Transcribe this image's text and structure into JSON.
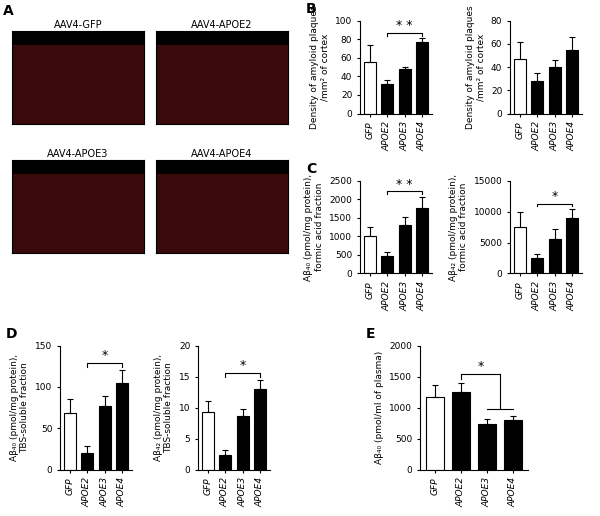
{
  "chart_data": [
    {
      "type": "image",
      "panel_label": "A",
      "images": [
        "AAV4-GFP",
        "AAV4-APOE2",
        "AAV4-APOE3",
        "AAV4-APOE4"
      ]
    },
    {
      "type": "bar",
      "panel_label": "B",
      "categories": [
        "GFP",
        "APOE2",
        "APOE3",
        "APOE4"
      ],
      "values": [
        55,
        32,
        48,
        77
      ],
      "errors": [
        19,
        4,
        2,
        4
      ],
      "colors": [
        "#ffffff",
        "#000000",
        "#000000",
        "#000000"
      ],
      "ylabel": "Density of amyloid plaques\n/mm² of cortex",
      "ylim": [
        0,
        100
      ],
      "yticks": [
        0,
        20,
        40,
        60,
        80,
        100
      ],
      "significance": [
        {
          "from": 1,
          "to": 3,
          "label": "* *"
        }
      ]
    },
    {
      "type": "bar",
      "categories": [
        "GFP",
        "APOE2",
        "APOE3",
        "APOE4"
      ],
      "values": [
        47,
        28,
        40,
        55
      ],
      "errors": [
        15,
        7,
        6,
        11
      ],
      "colors": [
        "#ffffff",
        "#000000",
        "#000000",
        "#000000"
      ],
      "ylabel": "Density of amyloid plaques\n/mm² of cortex",
      "ylim": [
        0,
        80
      ],
      "yticks": [
        0,
        20,
        40,
        60,
        80
      ],
      "significance": []
    },
    {
      "type": "bar",
      "panel_label": "C",
      "categories": [
        "GFP",
        "APOE2",
        "APOE3",
        "APOE4"
      ],
      "values": [
        1000,
        480,
        1300,
        1750
      ],
      "errors": [
        250,
        100,
        220,
        320
      ],
      "colors": [
        "#ffffff",
        "#000000",
        "#000000",
        "#000000"
      ],
      "ylabel": "Aβ₄₀ (pmol/mg protein),\nformic acid fraction",
      "ylim": [
        0,
        2500
      ],
      "yticks": [
        0,
        500,
        1000,
        1500,
        2000,
        2500
      ],
      "significance": [
        {
          "from": 1,
          "to": 3,
          "label": "* *"
        }
      ]
    },
    {
      "type": "bar",
      "categories": [
        "GFP",
        "APOE2",
        "APOE3",
        "APOE4"
      ],
      "values": [
        7500,
        2500,
        5500,
        9000
      ],
      "errors": [
        2500,
        700,
        1700,
        1400
      ],
      "colors": [
        "#ffffff",
        "#000000",
        "#000000",
        "#000000"
      ],
      "ylabel": "Aβ₄₂ (pmol/mg protein),\nformic acid fraction",
      "ylim": [
        0,
        15000
      ],
      "yticks": [
        0,
        5000,
        10000,
        15000
      ],
      "significance": [
        {
          "from": 1,
          "to": 3,
          "label": "*"
        }
      ]
    },
    {
      "type": "bar",
      "panel_label": "D",
      "categories": [
        "GFP",
        "APOE2",
        "APOE3",
        "APOE4"
      ],
      "values": [
        68,
        20,
        77,
        105
      ],
      "errors": [
        18,
        8,
        12,
        15
      ],
      "colors": [
        "#ffffff",
        "#000000",
        "#000000",
        "#000000"
      ],
      "ylabel": "Aβ₄₀ (pmol/mg protein),\nTBS-soluble fraction",
      "ylim": [
        0,
        150
      ],
      "yticks": [
        0,
        50,
        100,
        150
      ],
      "significance": [
        {
          "from": 1,
          "to": 3,
          "label": "*"
        }
      ]
    },
    {
      "type": "bar",
      "categories": [
        "GFP",
        "APOE2",
        "APOE3",
        "APOE4"
      ],
      "values": [
        9.3,
        2.3,
        8.6,
        13
      ],
      "errors": [
        1.7,
        0.8,
        1.1,
        1.4
      ],
      "colors": [
        "#ffffff",
        "#000000",
        "#000000",
        "#000000"
      ],
      "ylabel": "Aβ₄₂ (pmol/mg protein),\nTBS-soluble fraction",
      "ylim": [
        0,
        20
      ],
      "yticks": [
        0,
        5,
        10,
        15,
        20
      ],
      "significance": [
        {
          "from": 1,
          "to": 3,
          "label": "*"
        }
      ]
    },
    {
      "type": "bar",
      "panel_label": "E",
      "categories": [
        "GFP",
        "APOE2",
        "APOE3",
        "APOE4"
      ],
      "values": [
        1170,
        1250,
        740,
        800
      ],
      "errors": [
        200,
        150,
        80,
        70
      ],
      "colors": [
        "#ffffff",
        "#000000",
        "#000000",
        "#000000"
      ],
      "ylabel": "Aβ₄₀ (pmol/ml of plasma)",
      "ylim": [
        0,
        2000
      ],
      "yticks": [
        0,
        500,
        1000,
        1500,
        2000
      ],
      "significance": [
        {
          "from": 1,
          "to": [
            2,
            3
          ],
          "label": "*"
        }
      ]
    }
  ]
}
